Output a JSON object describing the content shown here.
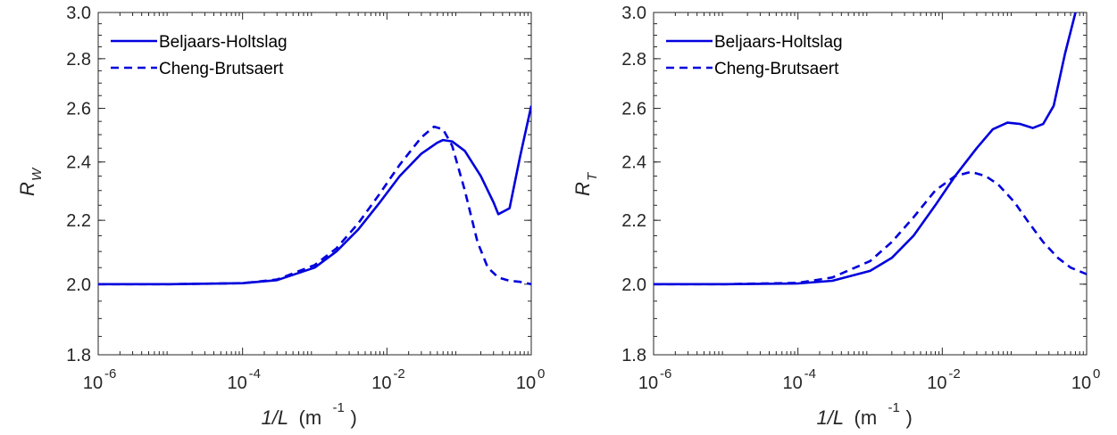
{
  "colors": {
    "series": "#0000dd",
    "axis": "#262626",
    "background": "#ffffff"
  },
  "chart_data": [
    {
      "type": "line",
      "panel": "left",
      "title": "",
      "xlabel": "1/L",
      "xlabel_unit": "(m",
      "xlabel_unit_exp": "-1",
      "xlabel_unit_close": ")",
      "ylabel": "R",
      "ylabel_sub": "W",
      "x_scale": "log",
      "y_scale": "log",
      "xlim": [
        1e-06,
        1
      ],
      "ylim": [
        1.8,
        3.0
      ],
      "x_ticks": [
        {
          "value": 1e-06,
          "base": "10",
          "exp": "-6"
        },
        {
          "value": 0.0001,
          "base": "10",
          "exp": "-4"
        },
        {
          "value": 0.01,
          "base": "10",
          "exp": "-2"
        },
        {
          "value": 1,
          "base": "10",
          "exp": "0"
        }
      ],
      "y_ticks": [
        {
          "value": 1.8,
          "label": "1.8"
        },
        {
          "value": 2.0,
          "label": "2.0"
        },
        {
          "value": 2.2,
          "label": "2.2"
        },
        {
          "value": 2.4,
          "label": "2.4"
        },
        {
          "value": 2.6,
          "label": "2.6"
        },
        {
          "value": 2.8,
          "label": "2.8"
        },
        {
          "value": 3.0,
          "label": "3.0"
        }
      ],
      "grid": false,
      "legend_position": "top-left",
      "series": [
        {
          "name": "Beljaars-Holtslag",
          "style": "solid",
          "x": [
            1e-06,
            1e-05,
            0.0001,
            0.0003,
            0.001,
            0.002,
            0.004,
            0.008,
            0.015,
            0.03,
            0.05,
            0.06,
            0.08,
            0.12,
            0.2,
            0.3,
            0.35,
            0.5,
            0.7,
            1
          ],
          "y": [
            2.0,
            2.0,
            2.003,
            2.012,
            2.05,
            2.1,
            2.17,
            2.26,
            2.35,
            2.43,
            2.47,
            2.48,
            2.475,
            2.44,
            2.35,
            2.26,
            2.22,
            2.24,
            2.42,
            2.61
          ]
        },
        {
          "name": "Cheng-Brutsaert",
          "style": "dashed",
          "x": [
            1e-06,
            1e-05,
            0.0001,
            0.0003,
            0.001,
            0.002,
            0.004,
            0.008,
            0.015,
            0.03,
            0.045,
            0.06,
            0.08,
            0.12,
            0.18,
            0.25,
            0.35,
            0.5,
            0.7,
            1
          ],
          "y": [
            2.0,
            2.0,
            2.003,
            2.014,
            2.058,
            2.11,
            2.19,
            2.29,
            2.39,
            2.49,
            2.53,
            2.52,
            2.46,
            2.3,
            2.13,
            2.05,
            2.02,
            2.01,
            2.007,
            2.0
          ]
        }
      ]
    },
    {
      "type": "line",
      "panel": "right",
      "title": "",
      "xlabel": "1/L",
      "xlabel_unit": "(m",
      "xlabel_unit_exp": "-1",
      "xlabel_unit_close": ")",
      "ylabel": "R",
      "ylabel_sub": "T",
      "x_scale": "log",
      "y_scale": "log",
      "xlim": [
        1e-06,
        1
      ],
      "ylim": [
        1.8,
        3.0
      ],
      "x_ticks": [
        {
          "value": 1e-06,
          "base": "10",
          "exp": "-6"
        },
        {
          "value": 0.0001,
          "base": "10",
          "exp": "-4"
        },
        {
          "value": 0.01,
          "base": "10",
          "exp": "-2"
        },
        {
          "value": 1,
          "base": "10",
          "exp": "0"
        }
      ],
      "y_ticks": [
        {
          "value": 1.8,
          "label": "1.8"
        },
        {
          "value": 2.0,
          "label": "2.0"
        },
        {
          "value": 2.2,
          "label": "2.2"
        },
        {
          "value": 2.4,
          "label": "2.4"
        },
        {
          "value": 2.6,
          "label": "2.6"
        },
        {
          "value": 2.8,
          "label": "2.8"
        },
        {
          "value": 3.0,
          "label": "3.0"
        }
      ],
      "grid": false,
      "legend_position": "top-left",
      "series": [
        {
          "name": "Beljaars-Holtslag",
          "style": "solid",
          "x": [
            1e-06,
            1e-05,
            0.0001,
            0.0003,
            0.001,
            0.002,
            0.004,
            0.008,
            0.015,
            0.03,
            0.05,
            0.08,
            0.12,
            0.18,
            0.25,
            0.35,
            0.5,
            0.7
          ],
          "y": [
            2.0,
            2.0,
            2.002,
            2.01,
            2.04,
            2.08,
            2.15,
            2.25,
            2.35,
            2.45,
            2.52,
            2.545,
            2.54,
            2.525,
            2.54,
            2.61,
            2.82,
            3.0
          ]
        },
        {
          "name": "Cheng-Brutsaert",
          "style": "dashed",
          "x": [
            1e-06,
            1e-05,
            0.0001,
            0.0003,
            0.001,
            0.002,
            0.004,
            0.008,
            0.015,
            0.025,
            0.04,
            0.06,
            0.1,
            0.15,
            0.25,
            0.4,
            0.6,
            1
          ],
          "y": [
            2.0,
            2.0,
            2.004,
            2.02,
            2.07,
            2.13,
            2.21,
            2.3,
            2.35,
            2.365,
            2.35,
            2.32,
            2.26,
            2.2,
            2.13,
            2.08,
            2.05,
            2.03
          ]
        }
      ]
    }
  ]
}
